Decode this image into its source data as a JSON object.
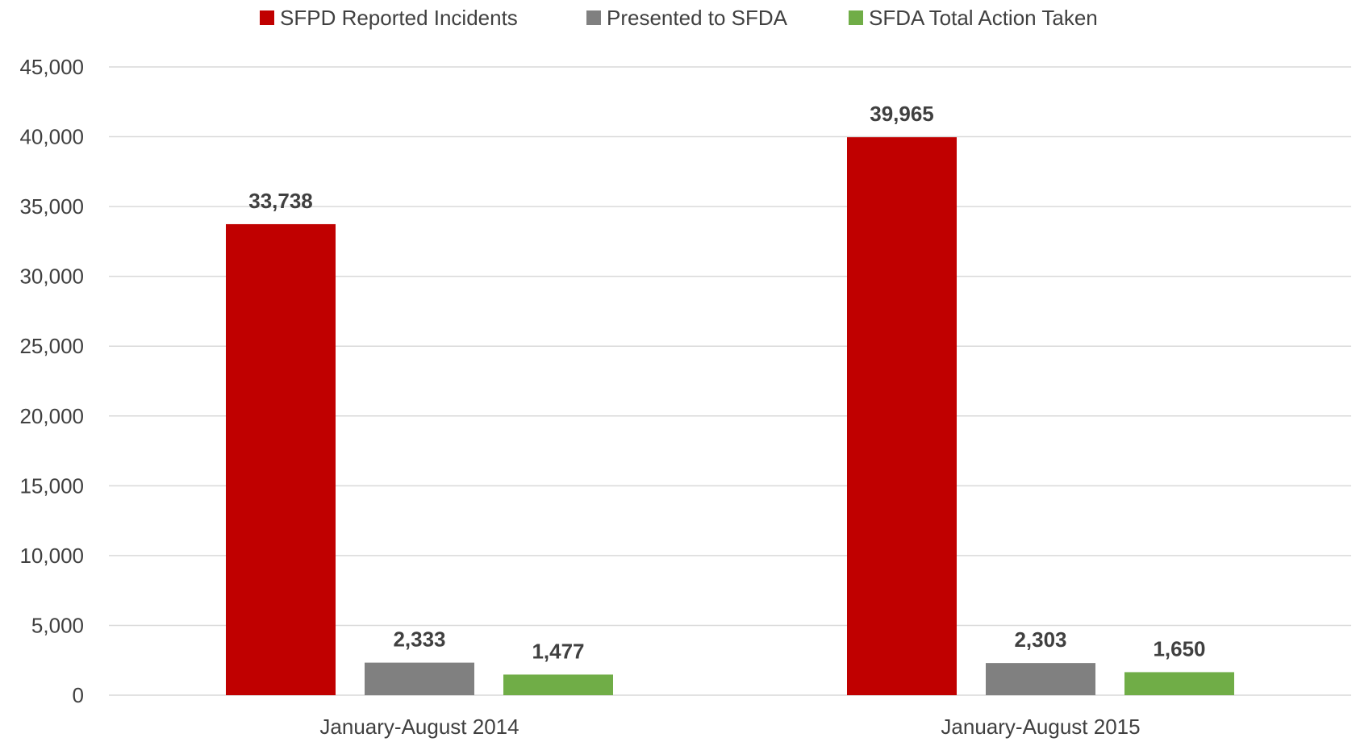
{
  "chart_data": {
    "type": "bar",
    "title": "",
    "xlabel": "",
    "ylabel": "",
    "categories": [
      "January-August 2014",
      "January-August 2015"
    ],
    "series": [
      {
        "name": "SFPD Reported Incidents",
        "color": "#c00000",
        "values": [
          33738,
          39965
        ],
        "labels": [
          "33,738",
          "39,965"
        ]
      },
      {
        "name": "Presented to SFDA",
        "color": "#808080",
        "values": [
          2333,
          2303
        ],
        "labels": [
          "2,333",
          "2,303"
        ]
      },
      {
        "name": "SFDA Total Action Taken",
        "color": "#70ad47",
        "values": [
          1477,
          1650
        ],
        "labels": [
          "1,477",
          "1,650"
        ]
      }
    ],
    "ylim": [
      0,
      45000
    ],
    "yticks": [
      0,
      5000,
      10000,
      15000,
      20000,
      25000,
      30000,
      35000,
      40000,
      45000
    ],
    "ytick_labels": [
      "0",
      "5,000",
      "10,000",
      "15,000",
      "20,000",
      "25,000",
      "30,000",
      "35,000",
      "40,000",
      "45,000"
    ],
    "grid": true,
    "legend_position": "top-center"
  }
}
